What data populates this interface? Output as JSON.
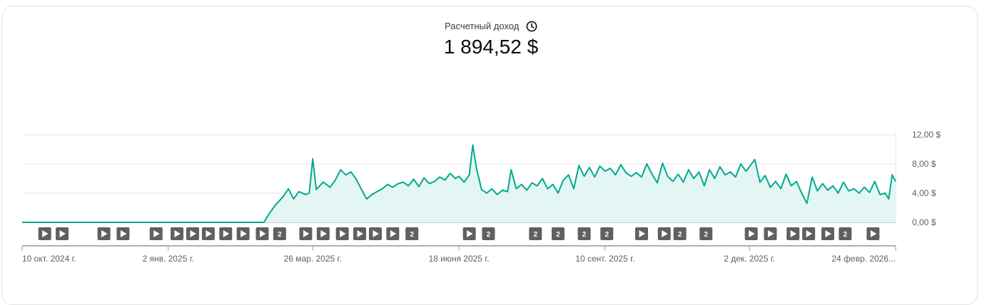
{
  "header": {
    "metric_label": "Расчетный доход",
    "metric_value": "1 894,52 $",
    "info_icon": "clock-icon"
  },
  "colors": {
    "line": "#00a990",
    "area": "#e4f6f3",
    "grid": "#e6e6e6",
    "marker": "#606060"
  },
  "chart_data": {
    "type": "area",
    "title": "",
    "x_range": [
      "2024-10-10",
      "2026-02-24"
    ],
    "y_range": [
      0,
      12
    ],
    "y_ticks": [
      "12,00 $",
      "8,00 $",
      "4,00 $",
      "0,00 $"
    ],
    "y_tick_values": [
      12,
      8,
      4,
      0
    ],
    "x_ticks": [
      "10 окт. 2024 г.",
      "2 янв. 2025 г.",
      "26 мар. 2025 г.",
      "18 июня 2025 г.",
      "10 сент. 2025 г.",
      "2 дек. 2025 г.",
      "24 февр. 2026..."
    ],
    "x_tick_dates": [
      "2024-10-10",
      "2025-01-02",
      "2025-03-26",
      "2025-06-18",
      "2025-09-10",
      "2025-12-02",
      "2026-02-24"
    ],
    "axis_side": "right",
    "grid": true,
    "series": [
      {
        "points": [
          [
            "2024-10-10",
            0
          ],
          [
            "2025-02-26",
            0
          ],
          [
            "2025-03-01",
            1.2
          ],
          [
            "2025-03-05",
            2.5
          ],
          [
            "2025-03-09",
            3.5
          ],
          [
            "2025-03-12",
            4.6
          ],
          [
            "2025-03-15",
            3.2
          ],
          [
            "2025-03-18",
            4.2
          ],
          [
            "2025-03-22",
            3.8
          ],
          [
            "2025-03-24",
            4.0
          ],
          [
            "2025-03-26",
            8.7
          ],
          [
            "2025-03-28",
            4.5
          ],
          [
            "2025-04-01",
            5.5
          ],
          [
            "2025-04-05",
            4.8
          ],
          [
            "2025-04-08",
            5.8
          ],
          [
            "2025-04-11",
            7.2
          ],
          [
            "2025-04-14",
            6.5
          ],
          [
            "2025-04-17",
            6.9
          ],
          [
            "2025-04-20",
            5.9
          ],
          [
            "2025-04-23",
            4.5
          ],
          [
            "2025-04-26",
            3.2
          ],
          [
            "2025-04-29",
            3.8
          ],
          [
            "2025-05-02",
            4.2
          ],
          [
            "2025-05-05",
            4.6
          ],
          [
            "2025-05-08",
            5.2
          ],
          [
            "2025-05-11",
            4.8
          ],
          [
            "2025-05-14",
            5.3
          ],
          [
            "2025-05-17",
            5.5
          ],
          [
            "2025-05-20",
            5.0
          ],
          [
            "2025-05-23",
            5.9
          ],
          [
            "2025-05-26",
            4.9
          ],
          [
            "2025-05-29",
            6.1
          ],
          [
            "2025-06-01",
            5.3
          ],
          [
            "2025-06-04",
            5.6
          ],
          [
            "2025-06-07",
            6.2
          ],
          [
            "2025-06-10",
            5.8
          ],
          [
            "2025-06-13",
            6.7
          ],
          [
            "2025-06-16",
            6.0
          ],
          [
            "2025-06-18",
            6.3
          ],
          [
            "2025-06-21",
            5.5
          ],
          [
            "2025-06-24",
            6.5
          ],
          [
            "2025-06-26",
            10.6
          ],
          [
            "2025-06-28",
            7.5
          ],
          [
            "2025-07-01",
            4.5
          ],
          [
            "2025-07-04",
            4.0
          ],
          [
            "2025-07-07",
            4.6
          ],
          [
            "2025-07-10",
            3.8
          ],
          [
            "2025-07-13",
            4.4
          ],
          [
            "2025-07-16",
            4.2
          ],
          [
            "2025-07-18",
            7.2
          ],
          [
            "2025-07-21",
            4.6
          ],
          [
            "2025-07-24",
            5.2
          ],
          [
            "2025-07-27",
            4.4
          ],
          [
            "2025-07-30",
            5.4
          ],
          [
            "2025-08-02",
            5.0
          ],
          [
            "2025-08-05",
            6.0
          ],
          [
            "2025-08-08",
            4.6
          ],
          [
            "2025-08-11",
            5.2
          ],
          [
            "2025-08-14",
            4.0
          ],
          [
            "2025-08-17",
            5.8
          ],
          [
            "2025-08-20",
            6.5
          ],
          [
            "2025-08-23",
            4.6
          ],
          [
            "2025-08-26",
            7.8
          ],
          [
            "2025-08-29",
            6.3
          ],
          [
            "2025-09-01",
            7.5
          ],
          [
            "2025-09-04",
            6.2
          ],
          [
            "2025-09-07",
            7.7
          ],
          [
            "2025-09-10",
            7.0
          ],
          [
            "2025-09-13",
            7.4
          ],
          [
            "2025-09-16",
            6.5
          ],
          [
            "2025-09-19",
            7.9
          ],
          [
            "2025-09-22",
            6.8
          ],
          [
            "2025-09-25",
            6.3
          ],
          [
            "2025-09-28",
            6.8
          ],
          [
            "2025-10-01",
            6.2
          ],
          [
            "2025-10-04",
            8.0
          ],
          [
            "2025-10-07",
            6.6
          ],
          [
            "2025-10-10",
            5.4
          ],
          [
            "2025-10-13",
            8.1
          ],
          [
            "2025-10-16",
            6.3
          ],
          [
            "2025-10-19",
            5.6
          ],
          [
            "2025-10-22",
            6.6
          ],
          [
            "2025-10-25",
            5.5
          ],
          [
            "2025-10-28",
            7.2
          ],
          [
            "2025-10-31",
            6.0
          ],
          [
            "2025-11-03",
            6.9
          ],
          [
            "2025-11-06",
            5.0
          ],
          [
            "2025-11-09",
            7.2
          ],
          [
            "2025-11-12",
            6.0
          ],
          [
            "2025-11-15",
            7.6
          ],
          [
            "2025-11-18",
            6.5
          ],
          [
            "2025-11-21",
            6.9
          ],
          [
            "2025-11-24",
            6.2
          ],
          [
            "2025-11-27",
            8.0
          ],
          [
            "2025-11-30",
            7.0
          ],
          [
            "2025-12-02",
            7.6
          ],
          [
            "2025-12-05",
            8.6
          ],
          [
            "2025-12-08",
            5.5
          ],
          [
            "2025-12-11",
            6.4
          ],
          [
            "2025-12-14",
            4.8
          ],
          [
            "2025-12-17",
            5.6
          ],
          [
            "2025-12-20",
            4.6
          ],
          [
            "2025-12-23",
            6.6
          ],
          [
            "2025-12-26",
            5.0
          ],
          [
            "2025-12-29",
            5.6
          ],
          [
            "2026-01-01",
            4.0
          ],
          [
            "2026-01-04",
            2.6
          ],
          [
            "2026-01-07",
            6.2
          ],
          [
            "2026-01-10",
            4.3
          ],
          [
            "2026-01-13",
            5.3
          ],
          [
            "2026-01-16",
            4.4
          ],
          [
            "2026-01-19",
            5.0
          ],
          [
            "2026-01-22",
            4.0
          ],
          [
            "2026-01-25",
            5.5
          ],
          [
            "2026-01-28",
            4.3
          ],
          [
            "2026-01-31",
            4.6
          ],
          [
            "2026-02-03",
            4.0
          ],
          [
            "2026-02-06",
            4.8
          ],
          [
            "2026-02-09",
            4.1
          ],
          [
            "2026-02-12",
            5.6
          ],
          [
            "2026-02-15",
            3.8
          ],
          [
            "2026-02-18",
            4.0
          ],
          [
            "2026-02-20",
            3.2
          ],
          [
            "2026-02-22",
            6.5
          ],
          [
            "2026-02-24",
            5.6
          ]
        ]
      }
    ],
    "markers": [
      {
        "date": "2024-10-23",
        "kind": "play"
      },
      {
        "date": "2024-11-02",
        "kind": "play"
      },
      {
        "date": "2024-11-26",
        "kind": "play"
      },
      {
        "date": "2024-12-07",
        "kind": "play"
      },
      {
        "date": "2024-12-26",
        "kind": "play"
      },
      {
        "date": "2025-01-07",
        "kind": "play"
      },
      {
        "date": "2025-01-16",
        "kind": "play"
      },
      {
        "date": "2025-01-25",
        "kind": "play"
      },
      {
        "date": "2025-02-04",
        "kind": "play"
      },
      {
        "date": "2025-02-14",
        "kind": "play"
      },
      {
        "date": "2025-02-25",
        "kind": "play"
      },
      {
        "date": "2025-03-07",
        "kind": "count",
        "label": "2"
      },
      {
        "date": "2025-03-22",
        "kind": "play"
      },
      {
        "date": "2025-04-01",
        "kind": "play"
      },
      {
        "date": "2025-04-12",
        "kind": "play"
      },
      {
        "date": "2025-04-22",
        "kind": "play"
      },
      {
        "date": "2025-05-01",
        "kind": "play"
      },
      {
        "date": "2025-05-11",
        "kind": "play"
      },
      {
        "date": "2025-05-22",
        "kind": "count",
        "label": "2"
      },
      {
        "date": "2025-06-24",
        "kind": "play"
      },
      {
        "date": "2025-07-05",
        "kind": "count",
        "label": "2"
      },
      {
        "date": "2025-08-01",
        "kind": "count",
        "label": "2"
      },
      {
        "date": "2025-08-14",
        "kind": "count",
        "label": "2"
      },
      {
        "date": "2025-08-29",
        "kind": "count",
        "label": "2"
      },
      {
        "date": "2025-09-11",
        "kind": "count",
        "label": "2"
      },
      {
        "date": "2025-10-01",
        "kind": "play"
      },
      {
        "date": "2025-10-14",
        "kind": "play"
      },
      {
        "date": "2025-10-23",
        "kind": "count",
        "label": "2"
      },
      {
        "date": "2025-11-07",
        "kind": "count",
        "label": "2"
      },
      {
        "date": "2025-12-03",
        "kind": "play"
      },
      {
        "date": "2025-12-14",
        "kind": "play"
      },
      {
        "date": "2025-12-27",
        "kind": "play"
      },
      {
        "date": "2026-01-05",
        "kind": "play"
      },
      {
        "date": "2026-01-16",
        "kind": "play"
      },
      {
        "date": "2026-01-26",
        "kind": "count",
        "label": "2"
      },
      {
        "date": "2026-02-11",
        "kind": "play"
      }
    ]
  }
}
